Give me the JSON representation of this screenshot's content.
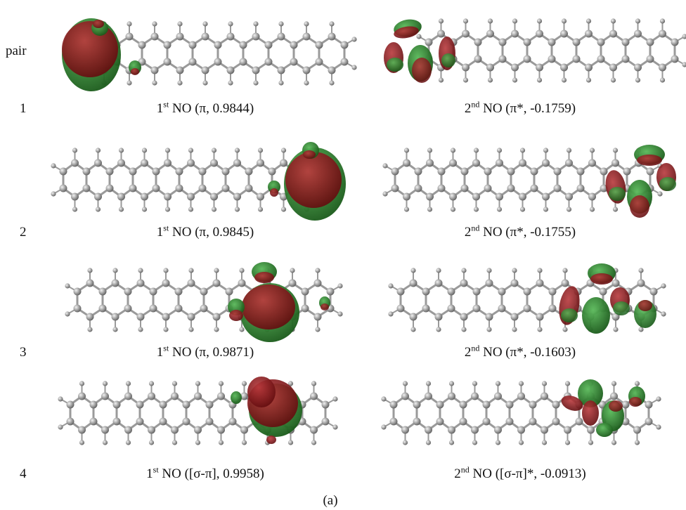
{
  "header": "pair",
  "figure_label": "(a)",
  "colors": {
    "lobe_red": "#7a0f12",
    "lobe_green": "#1f6b1f",
    "atom": "#8e8e8e",
    "bond": "#9a9a9a"
  },
  "pairs": [
    {
      "index": "1",
      "first": {
        "prefix": "1",
        "sup": "st",
        "text": " NO (π, 0.9844)"
      },
      "second": {
        "prefix": "2",
        "sup": "nd",
        "text": " NO (π*, -0.1759)"
      }
    },
    {
      "index": "2",
      "first": {
        "prefix": "1",
        "sup": "st",
        "text": " NO (π, 0.9845)"
      },
      "second": {
        "prefix": "2",
        "sup": "nd",
        "text": " NO (π*, -0.1755)"
      }
    },
    {
      "index": "3",
      "first": {
        "prefix": "1",
        "sup": "st",
        "text": " NO (π, 0.9871)"
      },
      "second": {
        "prefix": "2",
        "sup": "nd",
        "text": " NO (π*, -0.1603)"
      }
    },
    {
      "index": "4",
      "first": {
        "prefix": "1",
        "sup": "st",
        "text": " NO ([σ-π], 0.9958)"
      },
      "second": {
        "prefix": "2",
        "sup": "nd",
        "text": " NO ([σ-π]*, -0.0913)"
      }
    }
  ]
}
